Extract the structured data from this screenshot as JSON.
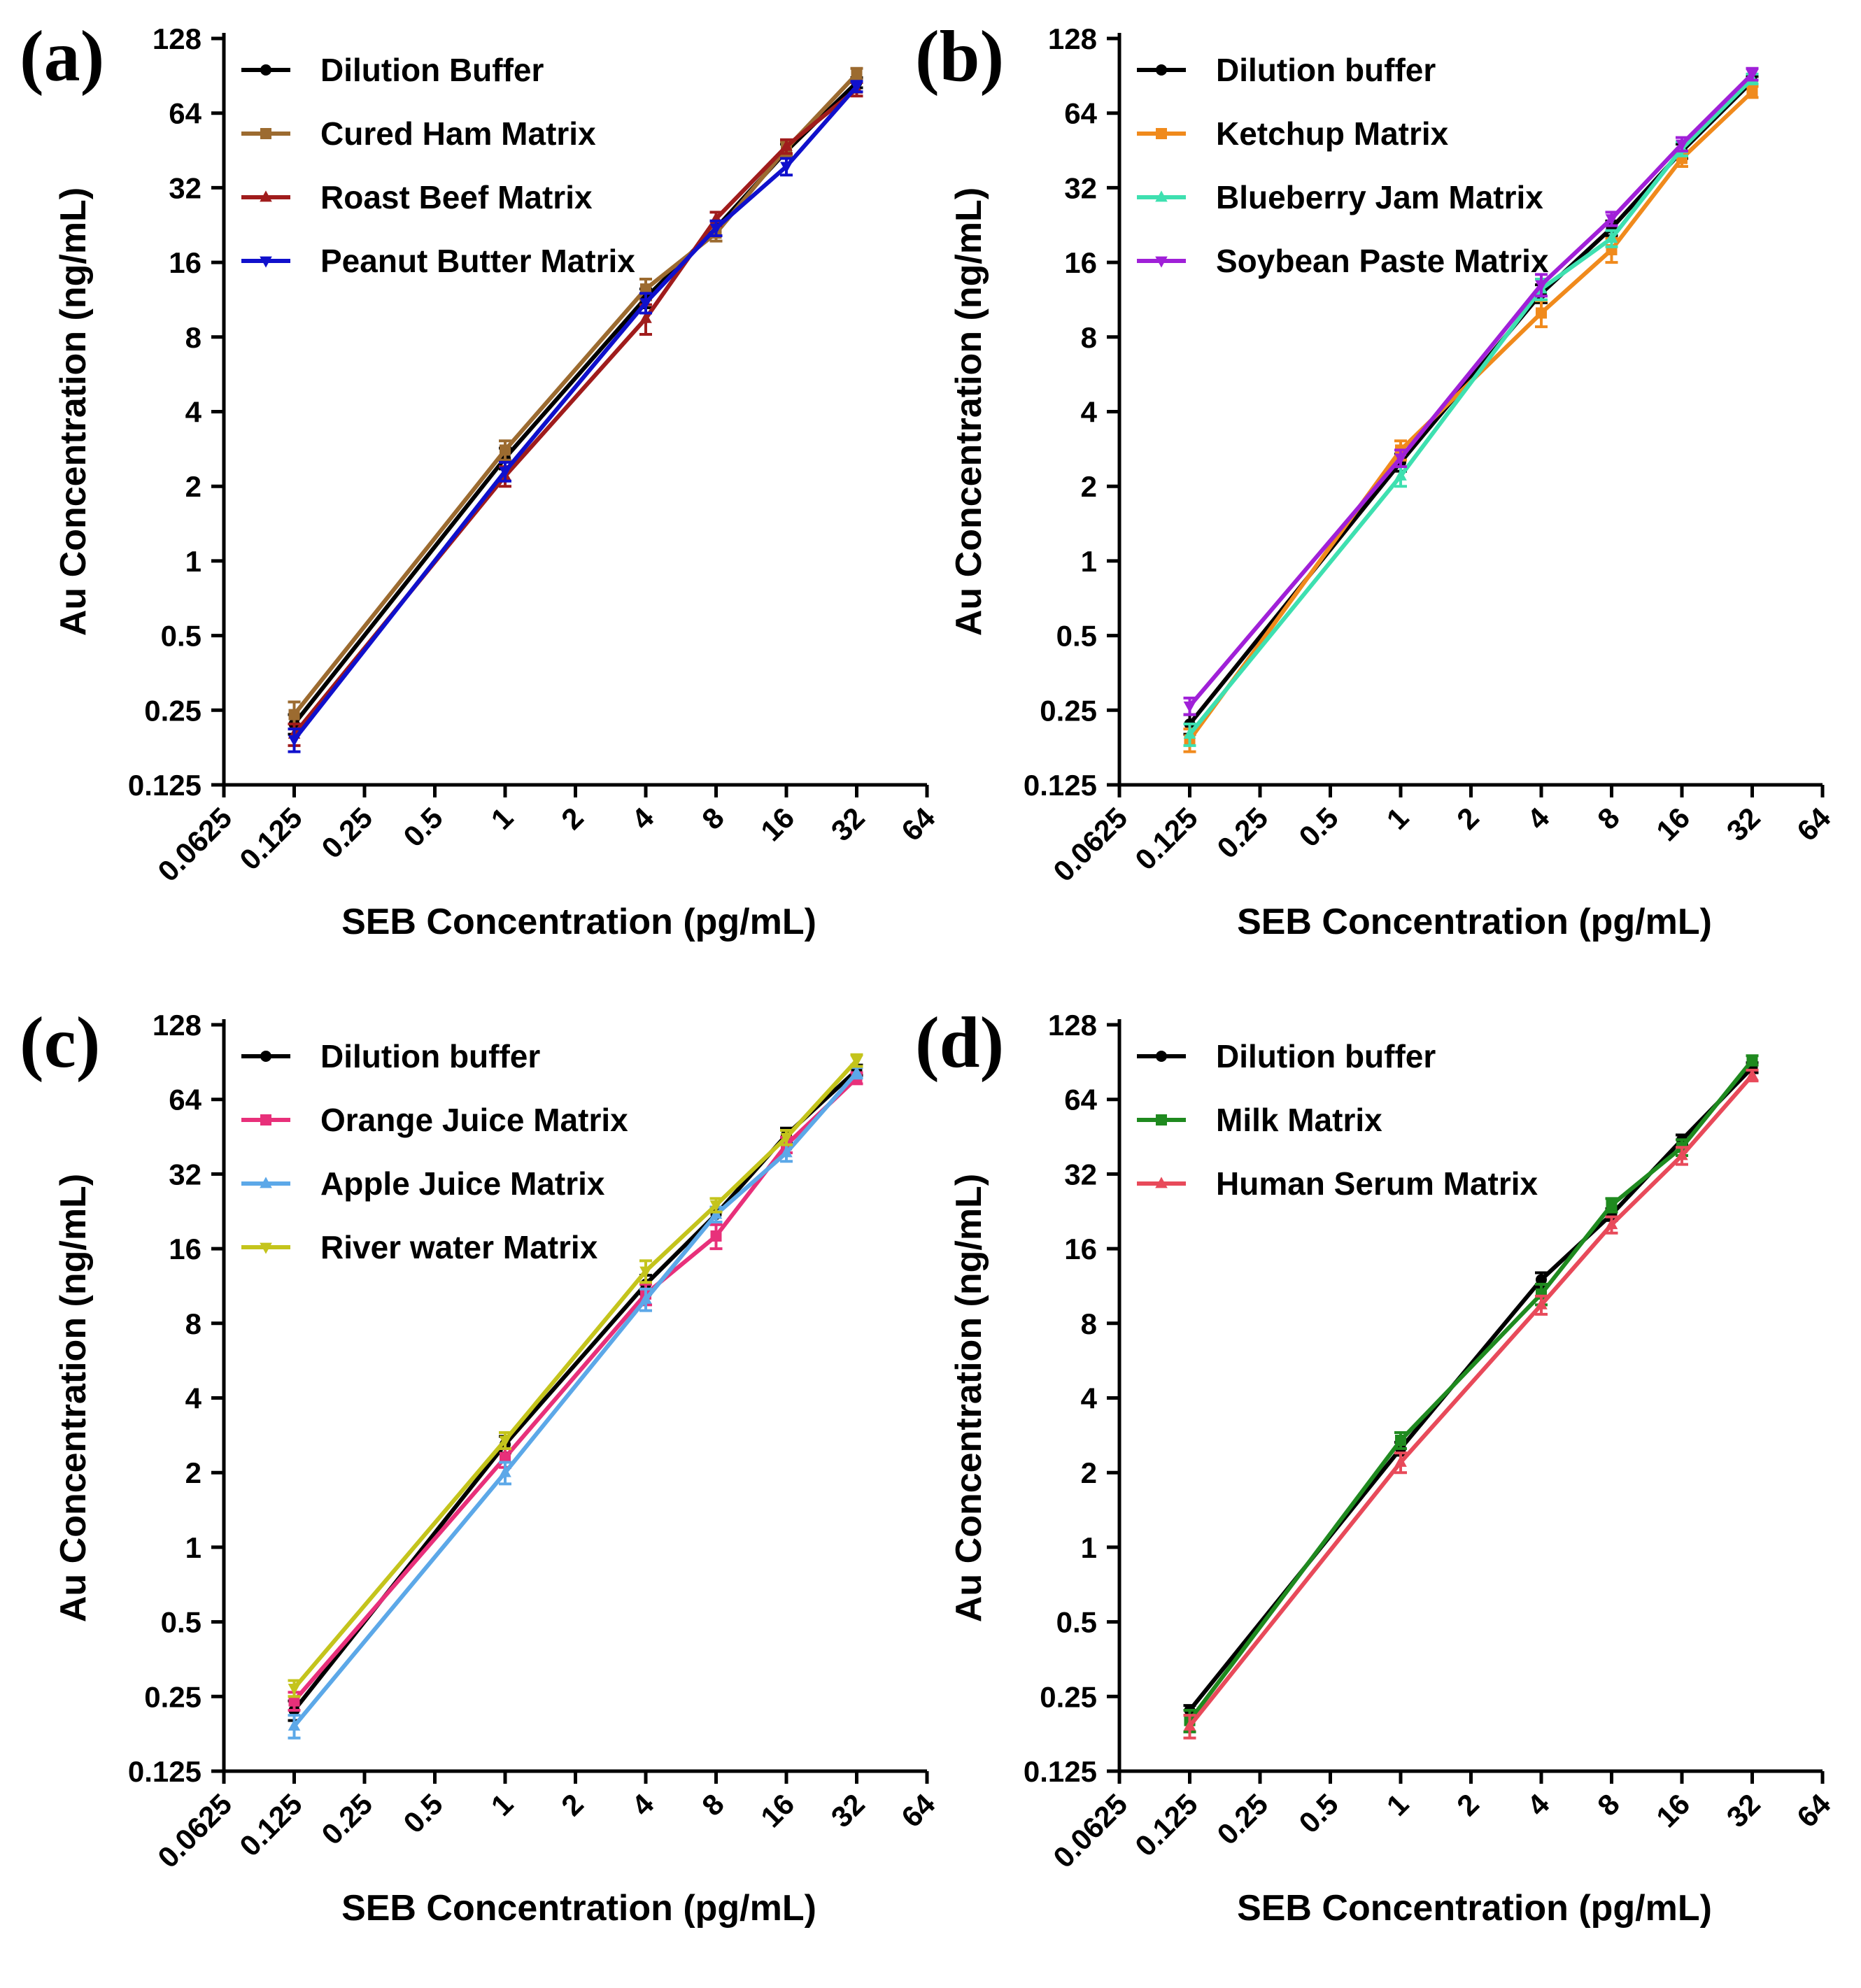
{
  "chart_data": [
    {
      "type": "line",
      "panel_label": "(a)",
      "xlabel": "SEB Concentration (pg/mL)",
      "ylabel": "Au Concentration (ng/mL)",
      "xscale": "log2",
      "yscale": "log2",
      "xlim": [
        0.0625,
        64
      ],
      "ylim": [
        0.125,
        128
      ],
      "xticks": [
        0.0625,
        0.125,
        0.25,
        0.5,
        1,
        2,
        4,
        8,
        16,
        32,
        64
      ],
      "xtick_labels": [
        "0.0625",
        "0.125",
        "0.25",
        "0.5",
        "1",
        "2",
        "4",
        "8",
        "16",
        "32",
        "64"
      ],
      "yticks": [
        0.125,
        0.25,
        0.5,
        1,
        2,
        4,
        8,
        16,
        32,
        64,
        128
      ],
      "ytick_labels": [
        "0.125",
        "0.25",
        "0.5",
        "1",
        "2",
        "4",
        "8",
        "16",
        "32",
        "64",
        "128"
      ],
      "legend_position": "top-left",
      "x": [
        0.125,
        1,
        4,
        8,
        16,
        32
      ],
      "series": [
        {
          "name": "Dilution Buffer",
          "color": "#000000",
          "marker": "circle",
          "values": [
            0.22,
            2.6,
            11.5,
            22,
            45,
            85
          ],
          "errors": [
            0.02,
            0.25,
            1.0,
            1.5,
            3,
            4
          ]
        },
        {
          "name": "Cured Ham Matrix",
          "color": "#9C6B30",
          "marker": "square",
          "values": [
            0.24,
            2.8,
            12.5,
            21,
            46,
            92
          ],
          "errors": [
            0.03,
            0.25,
            1.2,
            1.5,
            3,
            5
          ]
        },
        {
          "name": "Roast Beef Matrix",
          "color": "#A01C1C",
          "marker": "triangle-up",
          "values": [
            0.2,
            2.2,
            9.5,
            24,
            47,
            80
          ],
          "errors": [
            0.02,
            0.2,
            1.3,
            1.5,
            3,
            5
          ]
        },
        {
          "name": "Peanut Butter Matrix",
          "color": "#1010CC",
          "marker": "triangle-down",
          "values": [
            0.19,
            2.3,
            11,
            22,
            39,
            82
          ],
          "errors": [
            0.02,
            0.2,
            1.0,
            1.5,
            3,
            4
          ]
        }
      ]
    },
    {
      "type": "line",
      "panel_label": "(b)",
      "xlabel": "SEB Concentration (pg/mL)",
      "ylabel": "Au Concentration (ng/mL)",
      "xscale": "log2",
      "yscale": "log2",
      "xlim": [
        0.0625,
        64
      ],
      "ylim": [
        0.125,
        128
      ],
      "xticks": [
        0.0625,
        0.125,
        0.25,
        0.5,
        1,
        2,
        4,
        8,
        16,
        32,
        64
      ],
      "xtick_labels": [
        "0.0625",
        "0.125",
        "0.25",
        "0.5",
        "1",
        "2",
        "4",
        "8",
        "16",
        "32",
        "64"
      ],
      "yticks": [
        0.125,
        0.25,
        0.5,
        1,
        2,
        4,
        8,
        16,
        32,
        64,
        128
      ],
      "ytick_labels": [
        "0.125",
        "0.25",
        "0.5",
        "1",
        "2",
        "4",
        "8",
        "16",
        "32",
        "64",
        "128"
      ],
      "legend_position": "top-left",
      "x": [
        0.125,
        1,
        4,
        8,
        16,
        32
      ],
      "series": [
        {
          "name": "Dilution buffer",
          "color": "#000000",
          "marker": "circle",
          "values": [
            0.22,
            2.5,
            12,
            22,
            45,
            86
          ],
          "errors": [
            0.02,
            0.2,
            1.0,
            1.5,
            3,
            4
          ]
        },
        {
          "name": "Ketchup Matrix",
          "color": "#F08A1C",
          "marker": "square",
          "values": [
            0.19,
            2.8,
            10,
            18,
            42,
            78
          ],
          "errors": [
            0.02,
            0.25,
            1.2,
            2,
            3,
            4
          ]
        },
        {
          "name": "Blueberry Jam Matrix",
          "color": "#3EE0B0",
          "marker": "triangle-up",
          "values": [
            0.2,
            2.2,
            12.5,
            20,
            46,
            88
          ],
          "errors": [
            0.02,
            0.2,
            1.2,
            1.5,
            3,
            4
          ]
        },
        {
          "name": "Soybean Paste Matrix",
          "color": "#A020D8",
          "marker": "triangle-down",
          "values": [
            0.26,
            2.6,
            13,
            24,
            48,
            92
          ],
          "errors": [
            0.02,
            0.2,
            1.3,
            1.5,
            3,
            5
          ]
        }
      ]
    },
    {
      "type": "line",
      "panel_label": "(c)",
      "xlabel": "SEB Concentration (pg/mL)",
      "ylabel": "Au Concentration (ng/mL)",
      "xscale": "log2",
      "yscale": "log2",
      "xlim": [
        0.0625,
        64
      ],
      "ylim": [
        0.125,
        128
      ],
      "xticks": [
        0.0625,
        0.125,
        0.25,
        0.5,
        1,
        2,
        4,
        8,
        16,
        32,
        64
      ],
      "xtick_labels": [
        "0.0625",
        "0.125",
        "0.25",
        "0.5",
        "1",
        "2",
        "4",
        "8",
        "16",
        "32",
        "64"
      ],
      "yticks": [
        0.125,
        0.25,
        0.5,
        1,
        2,
        4,
        8,
        16,
        32,
        64,
        128
      ],
      "ytick_labels": [
        "0.125",
        "0.25",
        "0.5",
        "1",
        "2",
        "4",
        "8",
        "16",
        "32",
        "64",
        "128"
      ],
      "legend_position": "top-left",
      "x": [
        0.125,
        1,
        4,
        8,
        16,
        32
      ],
      "series": [
        {
          "name": "Dilution buffer",
          "color": "#000000",
          "marker": "circle",
          "values": [
            0.22,
            2.6,
            11.5,
            22,
            46,
            84
          ],
          "errors": [
            0.02,
            0.2,
            1.0,
            1.5,
            3,
            4
          ]
        },
        {
          "name": "Orange Juice Matrix",
          "color": "#E8307A",
          "marker": "square",
          "values": [
            0.24,
            2.3,
            10.5,
            18,
            42,
            78
          ],
          "errors": [
            0.02,
            0.2,
            1.0,
            2,
            3,
            4
          ]
        },
        {
          "name": "Apple Juice Matrix",
          "color": "#5CA8E8",
          "marker": "triangle-up",
          "values": [
            0.19,
            2.0,
            10,
            22,
            39,
            82
          ],
          "errors": [
            0.02,
            0.2,
            1.0,
            1.5,
            3,
            4
          ]
        },
        {
          "name": "River water Matrix",
          "color": "#C4C41C",
          "marker": "triangle-down",
          "values": [
            0.27,
            2.7,
            13,
            24,
            45,
            92
          ],
          "errors": [
            0.02,
            0.2,
            1.3,
            1.5,
            3,
            5
          ]
        }
      ]
    },
    {
      "type": "line",
      "panel_label": "(d)",
      "xlabel": "SEB Concentration (pg/mL)",
      "ylabel": "Au Concentration (ng/mL)",
      "xscale": "log2",
      "yscale": "log2",
      "xlim": [
        0.0625,
        64
      ],
      "ylim": [
        0.125,
        128
      ],
      "xticks": [
        0.0625,
        0.125,
        0.25,
        0.5,
        1,
        2,
        4,
        8,
        16,
        32,
        64
      ],
      "xtick_labels": [
        "0.0625",
        "0.125",
        "0.25",
        "0.5",
        "1",
        "2",
        "4",
        "8",
        "16",
        "32",
        "64"
      ],
      "yticks": [
        0.125,
        0.25,
        0.5,
        1,
        2,
        4,
        8,
        16,
        32,
        64,
        128
      ],
      "ytick_labels": [
        "0.125",
        "0.25",
        "0.5",
        "1",
        "2",
        "4",
        "8",
        "16",
        "32",
        "64",
        "128"
      ],
      "legend_position": "top-left",
      "x": [
        0.125,
        1,
        4,
        8,
        16,
        32
      ],
      "series": [
        {
          "name": "Dilution buffer",
          "color": "#000000",
          "marker": "circle",
          "values": [
            0.22,
            2.5,
            12,
            22,
            44,
            86
          ],
          "errors": [
            0.01,
            0.15,
            0.8,
            1.2,
            2,
            4
          ]
        },
        {
          "name": "Milk Matrix",
          "color": "#1F8A1F",
          "marker": "square",
          "values": [
            0.2,
            2.7,
            10.5,
            24,
            41,
            92
          ],
          "errors": [
            0.02,
            0.2,
            1.0,
            1.5,
            3,
            4
          ]
        },
        {
          "name": "Human Serum Matrix",
          "color": "#E84A5A",
          "marker": "triangle-up",
          "values": [
            0.19,
            2.2,
            9.5,
            20,
            38,
            80
          ],
          "errors": [
            0.02,
            0.2,
            0.8,
            1.5,
            3,
            4
          ]
        }
      ]
    }
  ]
}
